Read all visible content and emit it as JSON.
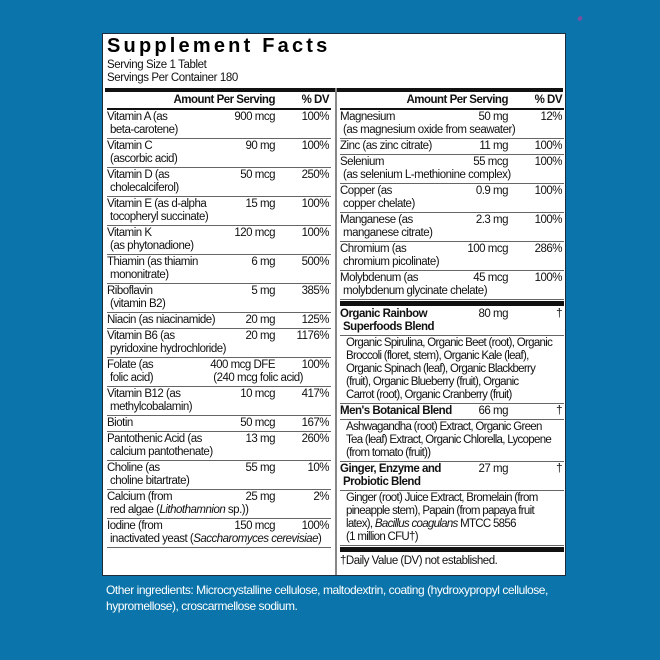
{
  "colors": {
    "background": "#0b75ab",
    "panel": "#ffffff",
    "text": "#111111"
  },
  "title": "Supplement Facts",
  "serving_size": "Serving Size 1 Tablet",
  "servings_per_container": "Servings Per Container 180",
  "header": {
    "amount": "Amount Per Serving",
    "dv": "% DV"
  },
  "left_rows": [
    {
      "name": "Vitamin A (as",
      "sub": [
        {
          "t": "beta-carotene)"
        }
      ],
      "amount": "900 mcg",
      "dv": "100%"
    },
    {
      "name": "Vitamin C",
      "sub": [
        {
          "t": "(ascorbic acid)"
        }
      ],
      "amount": "90 mg",
      "dv": "100%"
    },
    {
      "name": "Vitamin D (as",
      "sub": [
        {
          "t": "cholecalciferol)"
        }
      ],
      "amount": "50 mcg",
      "dv": "250%"
    },
    {
      "name": "Vitamin E (as d-alpha",
      "sub": [
        {
          "t": "tocopheryl succinate)"
        }
      ],
      "amount": "15 mg",
      "dv": "100%"
    },
    {
      "name": "Vitamin K",
      "sub": [
        {
          "t": "(as phytonadione)"
        }
      ],
      "amount": "120 mcg",
      "dv": "100%"
    },
    {
      "name": "Thiamin (as thiamin",
      "sub": [
        {
          "t": "mononitrate)"
        }
      ],
      "amount": "6 mg",
      "dv": "500%"
    },
    {
      "name": "Riboflavin",
      "sub": [
        {
          "t": "(vitamin B2)"
        }
      ],
      "amount": "5 mg",
      "dv": "385%"
    },
    {
      "name": "Niacin (as niacinamide)",
      "amount": "20 mg",
      "dv": "125%"
    },
    {
      "name": "Vitamin B6 (as",
      "sub": [
        {
          "t": "pyridoxine hydrochloride)"
        }
      ],
      "amount": "20 mg",
      "dv": "1176%"
    },
    {
      "name": "Folate (as",
      "sub": [
        {
          "t": "folic acid)"
        }
      ],
      "amount": "400 mcg DFE",
      "amount2": "(240 mcg folic acid)",
      "dv": "100%"
    },
    {
      "name": "Vitamin B12 (as",
      "sub": [
        {
          "t": "methylcobalamin)"
        }
      ],
      "amount": "10 mcg",
      "dv": "417%"
    },
    {
      "name": "Biotin",
      "amount": "50 mcg",
      "dv": "167%"
    },
    {
      "name": "Pantothenic Acid (as",
      "sub": [
        {
          "t": "calcium pantothenate)"
        }
      ],
      "amount": "13 mg",
      "dv": "260%"
    },
    {
      "name": "Choline (as",
      "sub": [
        {
          "t": "choline bitartrate)"
        }
      ],
      "amount": "55 mg",
      "dv": "10%"
    },
    {
      "name": "Calcium (from",
      "sub": [
        {
          "t": "red algae ("
        },
        {
          "t": "Lithothamnion",
          "i": true
        },
        {
          "t": " sp.))"
        }
      ],
      "amount": "25 mg",
      "dv": "2%"
    },
    {
      "name": "Iodine (from",
      "sub": [
        {
          "t": "inactivated yeast ("
        },
        {
          "t": "Saccharomyces cerevisiae",
          "i": true
        },
        {
          "t": ")"
        }
      ],
      "amount": "150 mcg",
      "dv": "100%"
    }
  ],
  "right_rows": [
    {
      "name": "Magnesium",
      "sub": [
        {
          "t": "(as magnesium oxide from seawater)"
        }
      ],
      "amount": "50 mg",
      "dv": "12%"
    },
    {
      "name": "Zinc (as zinc citrate)",
      "amount": "11 mg",
      "dv": "100%"
    },
    {
      "name": "Selenium",
      "sub": [
        {
          "t": "(as selenium L-methionine complex)"
        }
      ],
      "amount": "55 mcg",
      "dv": "100%"
    },
    {
      "name": "Copper (as",
      "sub": [
        {
          "t": "copper chelate)"
        }
      ],
      "amount": "0.9 mg",
      "dv": "100%"
    },
    {
      "name": "Manganese (as",
      "sub": [
        {
          "t": "manganese citrate)"
        }
      ],
      "amount": "2.3 mg",
      "dv": "100%"
    },
    {
      "name": "Chromium (as",
      "sub": [
        {
          "t": "chromium picolinate)"
        }
      ],
      "amount": "100 mcg",
      "dv": "286%"
    },
    {
      "name": "Molybdenum (as",
      "sub": [
        {
          "t": "molybdenum glycinate chelate)"
        }
      ],
      "amount": "45 mcg",
      "dv": "100%"
    }
  ],
  "blends": [
    {
      "name": "Organic Rainbow",
      "sub": [
        {
          "t": "Superfoods Blend"
        }
      ],
      "amount": "80 mg",
      "dv": "†",
      "desc": [
        [
          {
            "t": "Organic Spirulina, Organic Beet (root), Organic"
          }
        ],
        [
          {
            "t": "Broccoli (floret, stem), Organic Kale (leaf),"
          }
        ],
        [
          {
            "t": "Organic Spinach (leaf), Organic Blackberry"
          }
        ],
        [
          {
            "t": "(fruit), Organic Blueberry (fruit), Organic"
          }
        ],
        [
          {
            "t": "Carrot (root), Organic Cranberry (fruit)"
          }
        ]
      ]
    },
    {
      "name": "Men's Botanical Blend",
      "amount": "66 mg",
      "dv": "†",
      "desc": [
        [
          {
            "t": "Ashwagandha (root) Extract, Organic Green"
          }
        ],
        [
          {
            "t": "Tea (leaf) Extract, Organic Chlorella, Lycopene"
          }
        ],
        [
          {
            "t": "(from tomato (fruit))"
          }
        ]
      ]
    },
    {
      "name": "Ginger, Enzyme and",
      "sub": [
        {
          "t": "Probiotic Blend"
        }
      ],
      "amount": "27 mg",
      "dv": "†",
      "desc": [
        [
          {
            "t": "Ginger (root) Juice Extract, Bromelain (from"
          }
        ],
        [
          {
            "t": "pineapple stem), Papain (from papaya fruit"
          }
        ],
        [
          {
            "t": "latex), "
          },
          {
            "t": "Bacillus coagulans",
            "i": true
          },
          {
            "t": " MTCC 5856"
          }
        ],
        [
          {
            "t": "(1 million CFU†)"
          }
        ]
      ]
    }
  ],
  "footnote": "†Daily Value (DV) not established.",
  "other_ingredients_line1": "Other ingredients: Microcrystalline cellulose, maltodextrin, coating (hydroxypropyl cellulose,",
  "other_ingredients_line2": "hypromellose), croscarmellose sodium."
}
